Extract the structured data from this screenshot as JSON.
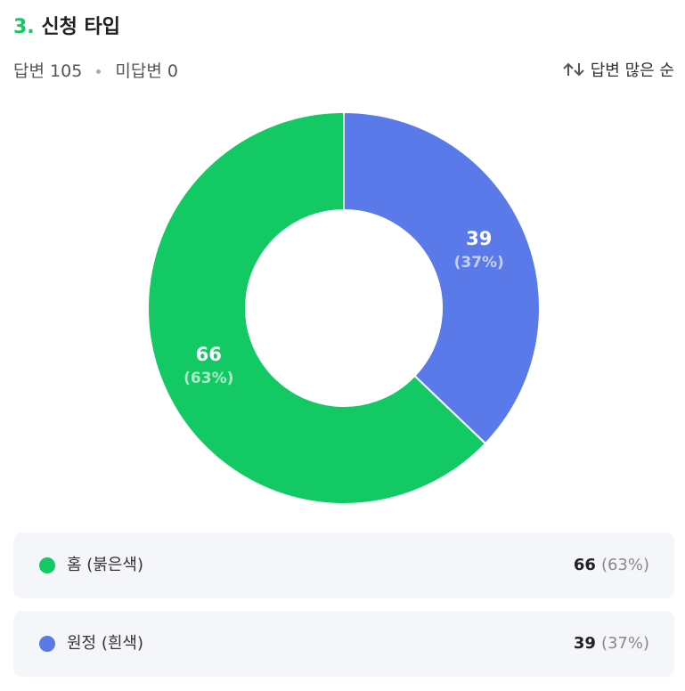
{
  "header": {
    "number": "3.",
    "title": "신청 타입",
    "answered_label": "답변",
    "answered": 105,
    "unanswered_label": "미답변",
    "unanswered": 0,
    "sort_label": "답변 많은 순"
  },
  "chart_data": {
    "type": "donut",
    "categories": [
      "홈 (붉은색)",
      "원정 (흰색)"
    ],
    "values": [
      66,
      39
    ],
    "share_labels": [
      "(63%)",
      "(37%)"
    ],
    "colors": [
      "#12c964",
      "#5a7aea"
    ]
  }
}
